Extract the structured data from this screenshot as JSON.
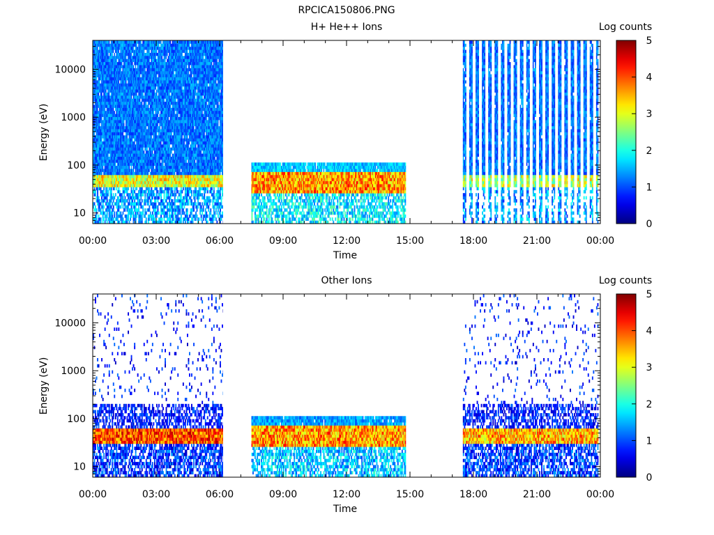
{
  "figure_title": "RPCICA150806.PNG",
  "chart_data": [
    {
      "type": "heatmap",
      "title": "H+ He++ Ions",
      "xlabel": "Time",
      "ylabel": "Energy (eV)",
      "x_ticks": [
        "00:00",
        "03:00",
        "06:00",
        "09:00",
        "12:00",
        "15:00",
        "18:00",
        "21:00",
        "00:00"
      ],
      "x_range_hours": [
        0,
        24
      ],
      "y_scale": "log",
      "y_ticks": [
        "10",
        "100",
        "1000",
        "10000"
      ],
      "y_range": [
        6,
        40000
      ],
      "colorbar": {
        "label": "Log counts",
        "ticks": [
          "0",
          "1",
          "2",
          "3",
          "4",
          "5"
        ],
        "range": [
          0,
          5
        ]
      },
      "data_segments": [
        {
          "start_hour": 0.0,
          "end_hour": 6.15,
          "style": "continuous",
          "max_energy": 40000,
          "band_low": 35,
          "band_high": 60,
          "band_level": 3.0,
          "background_level": 0.8
        },
        {
          "start_hour": 7.5,
          "end_hour": 14.8,
          "style": "continuous",
          "max_energy": 100,
          "band_low": 25,
          "band_high": 70,
          "band_level": 3.6,
          "background_level": 1.2
        },
        {
          "start_hour": 17.5,
          "end_hour": 23.9,
          "style": "striped",
          "max_energy": 40000,
          "band_low": 35,
          "band_high": 60,
          "band_level": 2.8,
          "background_level": 0.8
        }
      ]
    },
    {
      "type": "heatmap",
      "title": "Other Ions",
      "xlabel": "Time",
      "ylabel": "Energy (eV)",
      "x_ticks": [
        "00:00",
        "03:00",
        "06:00",
        "09:00",
        "12:00",
        "15:00",
        "18:00",
        "21:00",
        "00:00"
      ],
      "x_range_hours": [
        0,
        24
      ],
      "y_scale": "log",
      "y_ticks": [
        "10",
        "100",
        "1000",
        "10000"
      ],
      "y_range": [
        6,
        40000
      ],
      "colorbar": {
        "label": "Log counts",
        "ticks": [
          "0",
          "1",
          "2",
          "3",
          "4",
          "5"
        ],
        "range": [
          0,
          5
        ]
      },
      "data_segments": [
        {
          "start_hour": 0.0,
          "end_hour": 6.15,
          "style": "sparse",
          "max_energy": 40000,
          "band_low": 30,
          "band_high": 65,
          "band_level": 4.0,
          "background_level": 0.3
        },
        {
          "start_hour": 7.5,
          "end_hour": 14.8,
          "style": "continuous",
          "max_energy": 100,
          "band_low": 25,
          "band_high": 70,
          "band_level": 3.6,
          "background_level": 1.0
        },
        {
          "start_hour": 17.5,
          "end_hour": 23.9,
          "style": "sparse",
          "max_energy": 40000,
          "band_low": 30,
          "band_high": 60,
          "band_level": 3.5,
          "background_level": 0.3
        }
      ]
    }
  ]
}
